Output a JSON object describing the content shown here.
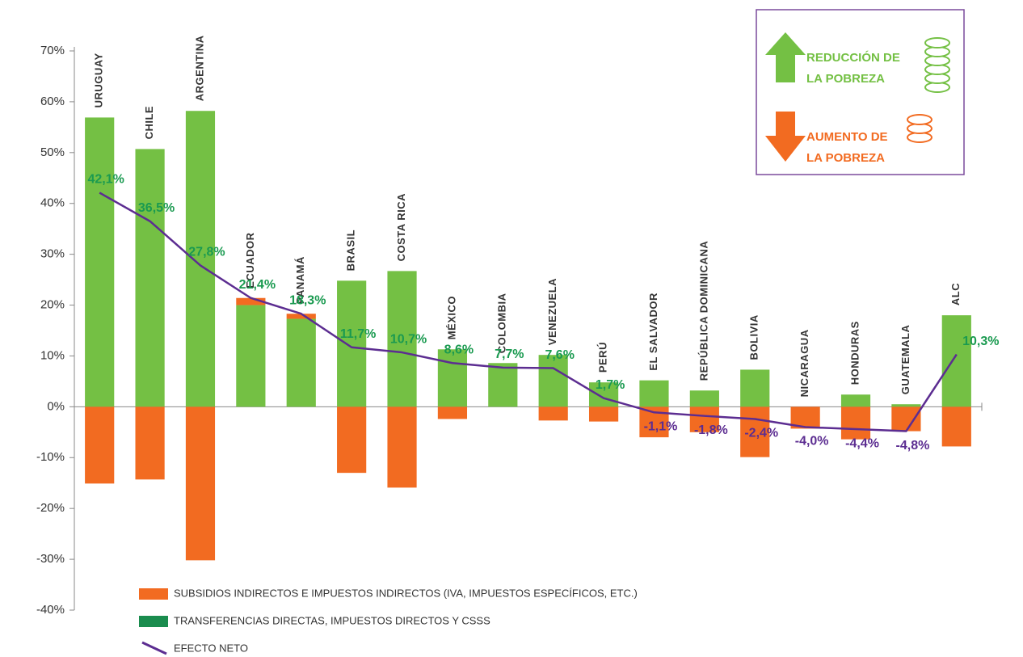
{
  "chart_data": {
    "type": "bar",
    "stacked": true,
    "categories": [
      "URUGUAY",
      "CHILE",
      "ARGENTINA",
      "ECUADOR",
      "PANAMÁ",
      "BRASIL",
      "COSTA RICA",
      "MÉXICO",
      "COLOMBIA",
      "VENEZUELA",
      "PERÚ",
      "EL SALVADOR",
      "REPÚBLICA DOMINICANA",
      "BOLIVIA",
      "NICARAGUA",
      "HONDURAS",
      "GUATEMALA",
      "ALC"
    ],
    "series": [
      {
        "name": "SUBSIDIOS INDIRECTOS E IMPUESTOS INDIRECTOS (IVA, IMPUESTOS ESPECÍFICOS, ETC.)",
        "type": "bar",
        "color": "#f26b21",
        "values": [
          -15.1,
          -14.3,
          -30.2,
          1.4,
          1.0,
          -13.0,
          -15.9,
          -2.4,
          0,
          -2.7,
          -2.9,
          -6.0,
          -5.0,
          -9.9,
          -4.3,
          -6.4,
          -4.8,
          -7.8
        ]
      },
      {
        "name": "TRANSFERENCIAS DIRECTAS, IMPUESTOS DIRECTOS Y CSSS",
        "type": "bar",
        "color": "#74c044",
        "legend_color": "#1a8c4e",
        "values": [
          56.9,
          50.7,
          58.2,
          20.0,
          17.3,
          24.8,
          26.7,
          11.3,
          8.6,
          10.2,
          4.8,
          5.2,
          3.2,
          7.3,
          0,
          2.4,
          0.5,
          18.0
        ]
      },
      {
        "name": "EFECTO NETO",
        "type": "line",
        "color": "#5c2d91",
        "values": [
          42.1,
          36.5,
          27.8,
          21.4,
          18.3,
          11.7,
          10.7,
          8.6,
          7.7,
          7.6,
          1.7,
          -1.1,
          -1.8,
          -2.4,
          -4.0,
          -4.4,
          -4.8,
          10.3
        ],
        "value_labels": [
          "42,1%",
          "36,5%",
          "27,8%",
          "21,4%",
          "18,3%",
          "11,7%",
          "10,7%",
          "8,6%",
          "7,7%",
          "7,6%",
          "1,7%",
          "-1,1%",
          "-1,8%",
          "-2,4%",
          "-4,0%",
          "-4,4%",
          "-4,8%",
          "10,3%"
        ],
        "label_colors": {
          "positive": "#1a9a50",
          "negative": "#5c2d91"
        }
      }
    ],
    "ylim": [
      -40,
      70
    ],
    "yticks": [
      {
        "value": -40,
        "label": "-40%"
      },
      {
        "value": -30,
        "label": "-30%"
      },
      {
        "value": -20,
        "label": "-20%"
      },
      {
        "value": -10,
        "label": "-10%"
      },
      {
        "value": 0,
        "label": "0%"
      },
      {
        "value": 10,
        "label": "10%"
      },
      {
        "value": 20,
        "label": "20%"
      },
      {
        "value": 30,
        "label": "30%"
      },
      {
        "value": 40,
        "label": "40%"
      },
      {
        "value": 50,
        "label": "50%"
      },
      {
        "value": 60,
        "label": "60%"
      },
      {
        "value": 70,
        "label": "70%"
      }
    ],
    "annotations": [
      {
        "lines": [
          "REDUCCIÓN DE",
          "LA POBREZA"
        ],
        "color": "#74c044"
      },
      {
        "lines": [
          "AUMENTO DE",
          "LA POBREZA"
        ],
        "color": "#f26b21"
      }
    ]
  }
}
